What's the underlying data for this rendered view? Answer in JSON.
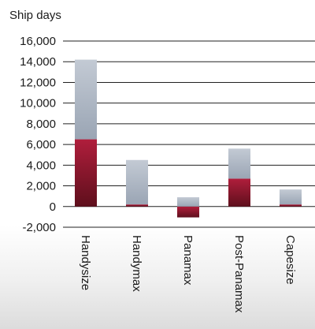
{
  "chart_data": {
    "type": "bar",
    "stacked": true,
    "title": "",
    "xlabel": "",
    "ylabel": "Ship days",
    "ylim": [
      -2000,
      16000
    ],
    "yticks": [
      "-2,000",
      "0",
      "2,000",
      "4,000",
      "6,000",
      "8,000",
      "10,000",
      "12,000",
      "14,000",
      "16,000"
    ],
    "ytick_values": [
      -2000,
      0,
      2000,
      4000,
      6000,
      8000,
      10000,
      12000,
      14000,
      16000
    ],
    "grid": "horizontal",
    "legend": "none",
    "categories": [
      "Handysize",
      "Handymax",
      "Panamax",
      "Post-Panamax",
      "Capesize"
    ],
    "series": [
      {
        "values": [
          6500,
          200,
          -1050,
          2700,
          200
        ],
        "color": "#8b1a2e"
      },
      {
        "values": [
          7700,
          4300,
          900,
          2900,
          1450
        ],
        "color": "#aab4c2"
      }
    ]
  },
  "colors": {
    "background_panel": "#e6e6e6",
    "gridline": "#222222"
  }
}
